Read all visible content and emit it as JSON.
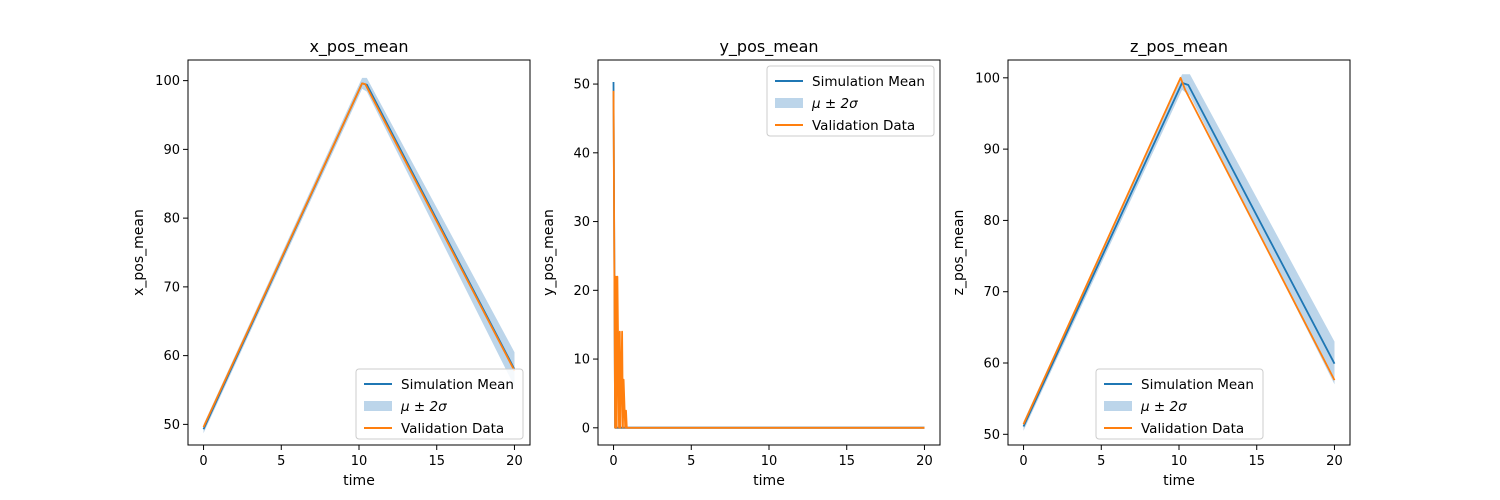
{
  "chart_data": [
    {
      "type": "line",
      "title": "x_pos_mean",
      "xlabel": "time",
      "ylabel": "x_pos_mean",
      "xlim": [
        -1,
        21
      ],
      "ylim": [
        47,
        103
      ],
      "xticks": [
        0,
        5,
        10,
        15,
        20
      ],
      "yticks": [
        50,
        60,
        70,
        80,
        90,
        100
      ],
      "grid": false,
      "legend_position": "lower-right",
      "legend": [
        "Simulation Mean",
        "μ ± 2σ",
        "Validation Data"
      ],
      "series": [
        {
          "name": "Simulation Mean",
          "x": [
            0,
            10.2,
            10.5,
            20
          ],
          "y": [
            49.3,
            99.6,
            99.4,
            58.0
          ]
        },
        {
          "name": "Validation Data",
          "x": [
            0,
            10.2,
            10.4,
            20
          ],
          "y": [
            49.6,
            99.6,
            99.5,
            57.8
          ]
        }
      ],
      "band": {
        "name": "μ ± 2σ",
        "x": [
          0,
          10.2,
          10.5,
          20
        ],
        "upper": [
          50.0,
          100.4,
          100.4,
          60.5
        ],
        "lower": [
          48.7,
          98.8,
          98.4,
          55.5
        ]
      }
    },
    {
      "type": "line",
      "title": "y_pos_mean",
      "xlabel": "time",
      "ylabel": "y_pos_mean",
      "xlim": [
        -1,
        21
      ],
      "ylim": [
        -2.5,
        53.5
      ],
      "xticks": [
        0,
        5,
        10,
        15,
        20
      ],
      "yticks": [
        0,
        10,
        20,
        30,
        40,
        50
      ],
      "grid": false,
      "legend_position": "upper-right",
      "legend": [
        "Simulation Mean",
        "μ ± 2σ",
        "Validation Data"
      ],
      "series": [
        {
          "name": "Simulation Mean",
          "x": [
            0,
            0.1,
            0.2,
            20
          ],
          "y": [
            50.3,
            0,
            0,
            0
          ]
        },
        {
          "name": "Validation Data",
          "x": [
            0,
            0.1,
            0.15,
            0.2,
            0.25,
            0.35,
            0.4,
            0.45,
            0.55,
            0.6,
            0.65,
            0.75,
            0.8,
            0.85,
            1.0,
            20
          ],
          "y": [
            49.0,
            0,
            22,
            0,
            22,
            0,
            14,
            0,
            14,
            0,
            7,
            0,
            2.5,
            0,
            0,
            0
          ]
        }
      ],
      "band": {
        "name": "μ ± 2σ",
        "x": [
          0,
          0.1,
          0.2,
          20
        ],
        "upper": [
          50.5,
          0.3,
          0.2,
          0.2
        ],
        "lower": [
          50.1,
          0,
          0,
          0
        ]
      }
    },
    {
      "type": "line",
      "title": "z_pos_mean",
      "xlabel": "time",
      "ylabel": "z_pos_mean",
      "xlim": [
        -1,
        21
      ],
      "ylim": [
        48.5,
        102.5
      ],
      "xticks": [
        0,
        5,
        10,
        15,
        20
      ],
      "yticks": [
        50,
        60,
        70,
        80,
        90,
        100
      ],
      "grid": false,
      "legend_position": "lower-center",
      "legend": [
        "Simulation Mean",
        "μ ± 2σ",
        "Validation Data"
      ],
      "series": [
        {
          "name": "Simulation Mean",
          "x": [
            0,
            10.2,
            10.6,
            20
          ],
          "y": [
            51.1,
            99.3,
            99.0,
            59.9
          ]
        },
        {
          "name": "Validation Data",
          "x": [
            0,
            10.1,
            10.4,
            20
          ],
          "y": [
            51.4,
            100.0,
            98.3,
            57.6
          ]
        }
      ],
      "band": {
        "name": "μ ± 2σ",
        "x": [
          0,
          10.2,
          10.7,
          20
        ],
        "upper": [
          51.8,
          100.5,
          100.5,
          63.0
        ],
        "lower": [
          50.5,
          98.3,
          97.5,
          57.0
        ]
      }
    }
  ],
  "colors": {
    "simulation_mean": "#1f77b4",
    "band": "#bcd5ea",
    "validation": "#ff7f0e",
    "axes": "#000000",
    "legend_border": "#cccccc"
  }
}
